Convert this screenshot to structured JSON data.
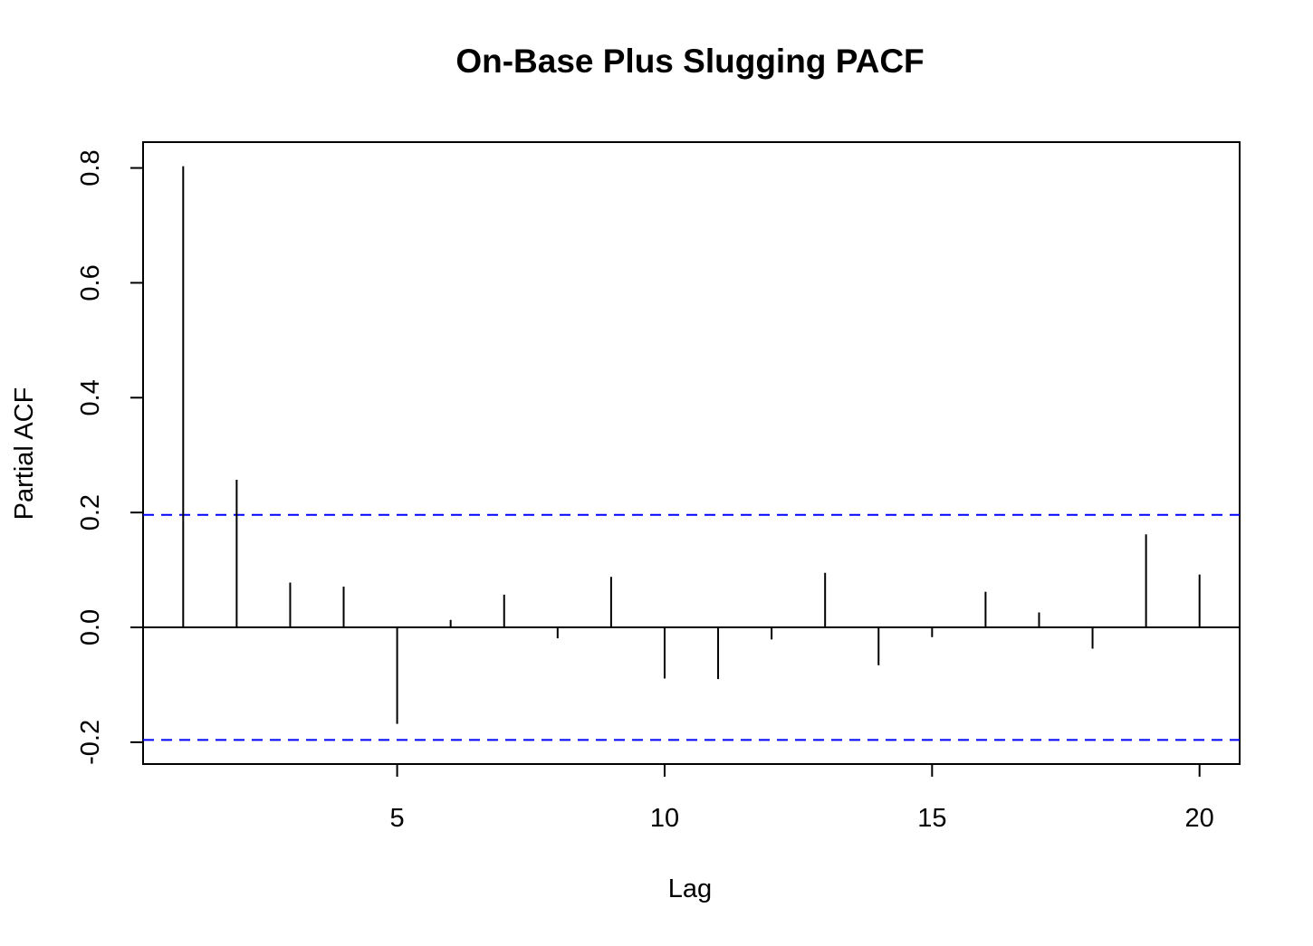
{
  "chart_data": {
    "type": "bar",
    "title": "On-Base Plus Slugging PACF",
    "xlabel": "Lag",
    "ylabel": "Partial ACF",
    "x": [
      1,
      2,
      3,
      4,
      5,
      6,
      7,
      8,
      9,
      10,
      11,
      12,
      13,
      14,
      15,
      16,
      17,
      18,
      19,
      20
    ],
    "values": [
      0.803,
      0.257,
      0.078,
      0.071,
      -0.168,
      0.013,
      0.057,
      -0.019,
      0.088,
      -0.089,
      -0.09,
      -0.021,
      0.095,
      -0.066,
      -0.017,
      0.062,
      0.026,
      -0.037,
      0.162,
      0.092
    ],
    "confidence_bound": 0.196,
    "xlim": [
      0.25,
      20.75
    ],
    "ylim": [
      -0.238,
      0.845
    ],
    "x_ticks": [
      5,
      10,
      15,
      20
    ],
    "x_tick_labels": [
      "5",
      "10",
      "15",
      "20"
    ],
    "y_ticks": [
      -0.2,
      0.0,
      0.2,
      0.4,
      0.6,
      0.8
    ],
    "y_tick_labels": [
      "-0.2",
      "0.0",
      "0.2",
      "0.4",
      "0.6",
      "0.8"
    ],
    "grid": false,
    "colors": {
      "bars": "#000000",
      "confidence_lines": "#0000ff",
      "axes": "#000000"
    }
  }
}
